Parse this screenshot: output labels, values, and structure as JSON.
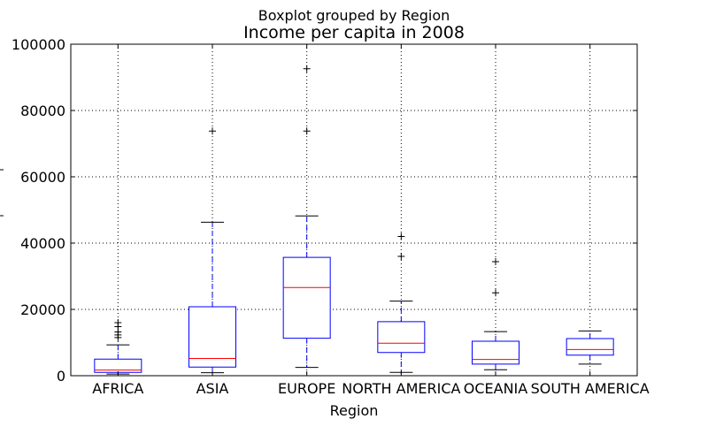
{
  "chart_data": {
    "type": "box",
    "suptitle": "Boxplot grouped by Region",
    "title": "Income per capita in 2008",
    "xlabel": "Region",
    "ylabel": "",
    "ylim": [
      0,
      100000
    ],
    "yticks": [
      0,
      20000,
      40000,
      60000,
      80000,
      100000
    ],
    "ytick_labels": [
      "0",
      "20000",
      "40000",
      "60000",
      "80000",
      "100000"
    ],
    "grid": true,
    "colors": {
      "box": "#0000ff",
      "median": "#ff0000",
      "whisker": "#0000ff",
      "cap": "#000000",
      "flier": "#000000",
      "grid": "#000000"
    },
    "categories": [
      "AFRICA",
      "ASIA",
      "EUROPE",
      "NORTH AMERICA",
      "OCEANIA",
      "SOUTH AMERICA"
    ],
    "boxes": [
      {
        "category": "AFRICA",
        "whisker_low": 500,
        "q1": 1000,
        "median": 1700,
        "q3": 5000,
        "whisker_high": 9300,
        "fliers": [
          11500,
          12300,
          13200,
          14800,
          16000
        ]
      },
      {
        "category": "ASIA",
        "whisker_low": 900,
        "q1": 2600,
        "median": 5200,
        "q3": 20800,
        "whisker_high": 46300,
        "fliers": [
          73800
        ]
      },
      {
        "category": "EUROPE",
        "whisker_low": 2500,
        "q1": 11300,
        "median": 26600,
        "q3": 35700,
        "whisker_high": 48200,
        "fliers": [
          73800,
          92600
        ]
      },
      {
        "category": "NORTH AMERICA",
        "whisker_low": 1000,
        "q1": 7000,
        "median": 9800,
        "q3": 16300,
        "whisker_high": 22500,
        "fliers": [
          36000,
          42000
        ]
      },
      {
        "category": "OCEANIA",
        "whisker_low": 1800,
        "q1": 3500,
        "median": 4900,
        "q3": 10400,
        "whisker_high": 13300,
        "fliers": [
          25000,
          34400
        ]
      },
      {
        "category": "SOUTH AMERICA",
        "whisker_low": 3500,
        "q1": 6200,
        "median": 7900,
        "q3": 11200,
        "whisker_high": 13500,
        "fliers": []
      }
    ]
  }
}
